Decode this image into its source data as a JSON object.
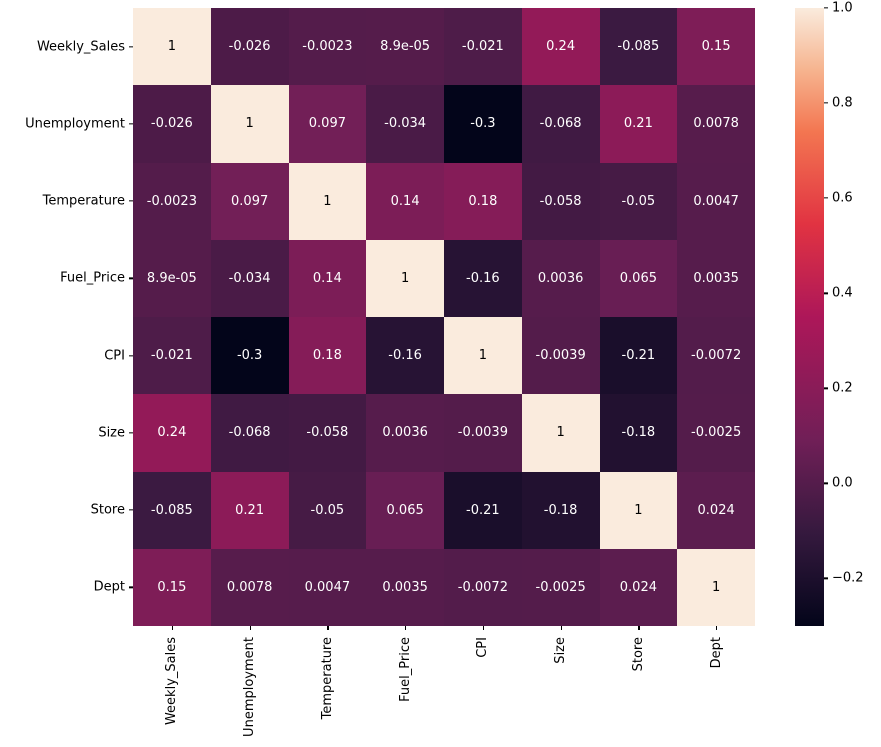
{
  "figure": {
    "background": "#ffffff",
    "text_color": "#000000"
  },
  "chart_data": {
    "type": "heatmap",
    "title": "",
    "xlabel": "",
    "ylabel": "",
    "x_tick_rotation": 90,
    "variables": [
      "Weekly_Sales",
      "Unemployment",
      "Temperature",
      "Fuel_Price",
      "CPI",
      "Size",
      "Store",
      "Dept"
    ],
    "matrix": [
      [
        1,
        -0.026,
        -0.0023,
        8.9e-05,
        -0.021,
        0.24,
        -0.085,
        0.15
      ],
      [
        -0.026,
        1,
        0.097,
        -0.034,
        -0.3,
        -0.068,
        0.21,
        0.0078
      ],
      [
        -0.0023,
        0.097,
        1,
        0.14,
        0.18,
        -0.058,
        -0.05,
        0.0047
      ],
      [
        8.9e-05,
        -0.034,
        0.14,
        1,
        -0.16,
        0.0036,
        0.065,
        0.0035
      ],
      [
        -0.021,
        -0.3,
        0.18,
        -0.16,
        1,
        -0.0039,
        -0.21,
        -0.0072
      ],
      [
        0.24,
        -0.068,
        -0.058,
        0.0036,
        -0.0039,
        1,
        -0.18,
        -0.0025
      ],
      [
        -0.085,
        0.21,
        -0.05,
        0.065,
        -0.21,
        -0.18,
        1,
        0.024
      ],
      [
        0.15,
        0.0078,
        0.0047,
        0.0035,
        -0.0072,
        -0.0025,
        0.024,
        1
      ]
    ],
    "annotations": [
      [
        "1",
        "-0.026",
        "-0.0023",
        "8.9e-05",
        "-0.021",
        "0.24",
        "-0.085",
        "0.15"
      ],
      [
        "-0.026",
        "1",
        "0.097",
        "-0.034",
        "-0.3",
        "-0.068",
        "0.21",
        "0.0078"
      ],
      [
        "-0.0023",
        "0.097",
        "1",
        "0.14",
        "0.18",
        "-0.058",
        "-0.05",
        "0.0047"
      ],
      [
        "8.9e-05",
        "-0.034",
        "0.14",
        "1",
        "-0.16",
        "0.0036",
        "0.065",
        "0.0035"
      ],
      [
        "-0.021",
        "-0.3",
        "0.18",
        "-0.16",
        "1",
        "-0.0039",
        "-0.21",
        "-0.0072"
      ],
      [
        "0.24",
        "-0.068",
        "-0.058",
        "0.0036",
        "-0.0039",
        "1",
        "-0.18",
        "-0.0025"
      ],
      [
        "-0.085",
        "0.21",
        "-0.05",
        "0.065",
        "-0.21",
        "-0.18",
        "1",
        "0.024"
      ],
      [
        "0.15",
        "0.0078",
        "0.0047",
        "0.0035",
        "-0.0072",
        "-0.0025",
        "0.024",
        "1"
      ]
    ],
    "vmin": -0.3,
    "vmax": 1.0,
    "colormap": {
      "name": "rocket",
      "stops": [
        {
          "t": 0.0,
          "color": "#03051A"
        },
        {
          "t": 0.15,
          "color": "#35193E"
        },
        {
          "t": 0.3,
          "color": "#701F57"
        },
        {
          "t": 0.5,
          "color": "#AD1759"
        },
        {
          "t": 0.65,
          "color": "#E13342"
        },
        {
          "t": 0.8,
          "color": "#F37651"
        },
        {
          "t": 0.9,
          "color": "#F6B48F"
        },
        {
          "t": 1.0,
          "color": "#FAEBDD"
        }
      ]
    },
    "colorbar": {
      "position": "right",
      "ticks": [
        {
          "value": 1.0,
          "label": "1.0"
        },
        {
          "value": 0.8,
          "label": "0.8"
        },
        {
          "value": 0.6,
          "label": "0.6"
        },
        {
          "value": 0.4,
          "label": "0.4"
        },
        {
          "value": 0.2,
          "label": "0.2"
        },
        {
          "value": 0.0,
          "label": "0.0"
        },
        {
          "value": -0.2,
          "label": "−0.2"
        }
      ]
    },
    "annotation_text_colors": {
      "dark": "#000000",
      "light": "#ffffff"
    }
  }
}
